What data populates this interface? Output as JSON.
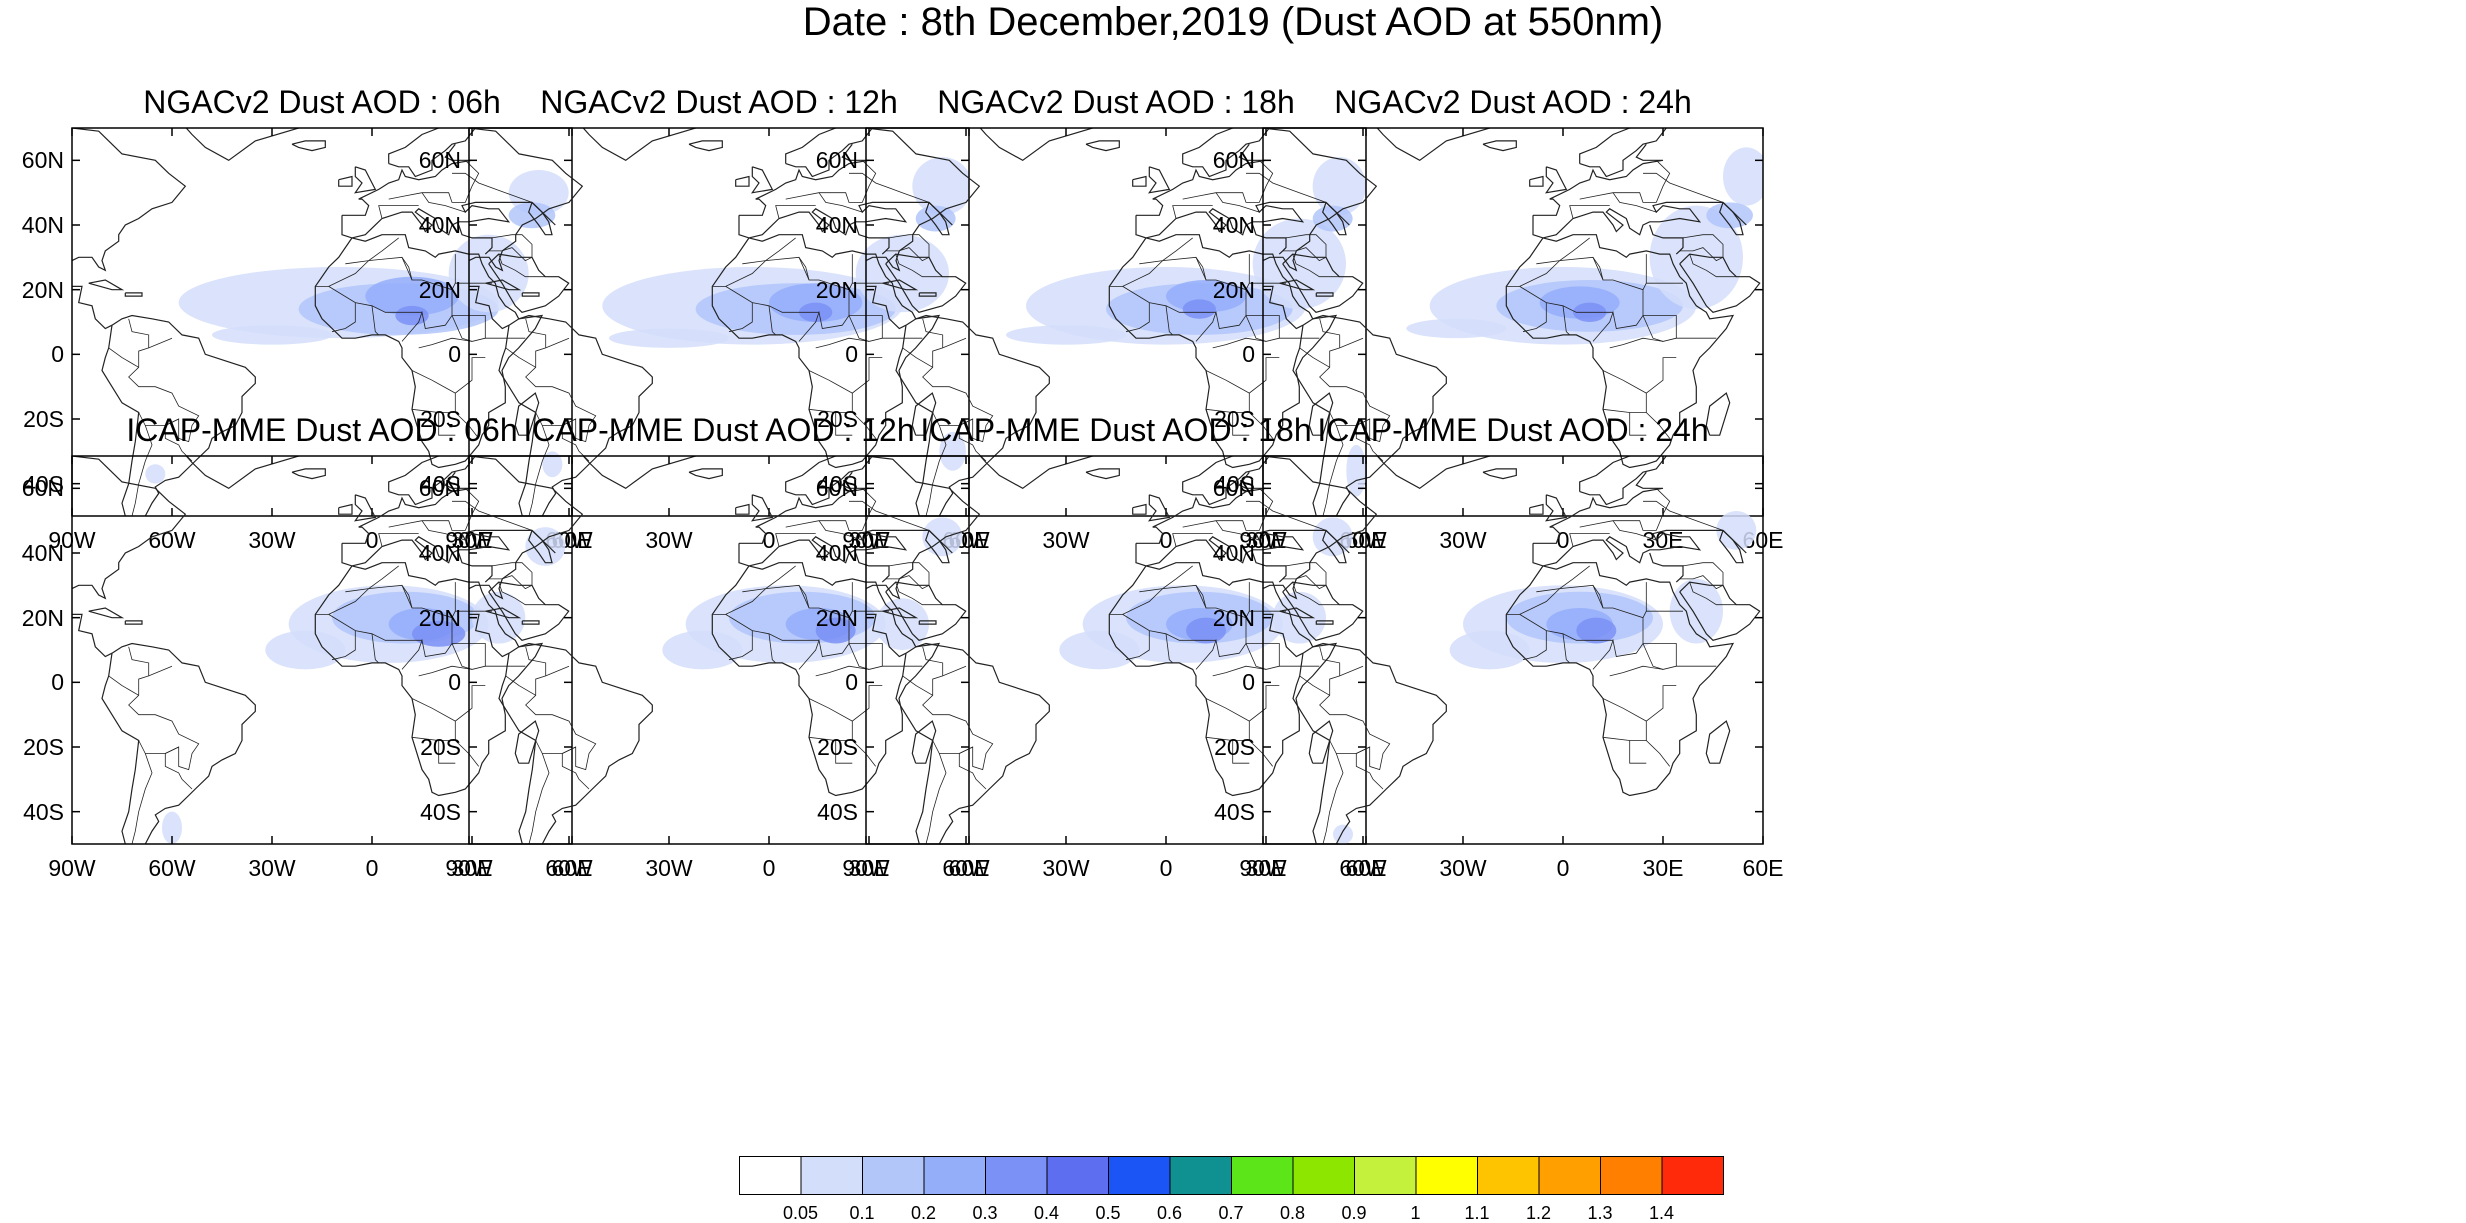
{
  "title": "Date : 8th December,2019 (Dust AOD at 550nm)",
  "panels": [
    {
      "title": "NGACv2 Dust AOD : 06h"
    },
    {
      "title": "NGACv2 Dust AOD : 12h"
    },
    {
      "title": "NGACv2 Dust AOD : 18h"
    },
    {
      "title": "NGACv2 Dust AOD : 24h"
    },
    {
      "title": "ICAP-MME Dust AOD : 06h"
    },
    {
      "title": "ICAP-MME Dust AOD : 12h"
    },
    {
      "title": "ICAP-MME Dust AOD : 18h"
    },
    {
      "title": "ICAP-MME Dust AOD : 24h"
    }
  ],
  "axes": {
    "lat_labels": [
      "60N",
      "40N",
      "20N",
      "0",
      "20S",
      "40S"
    ],
    "lon_labels": [
      "90W",
      "60W",
      "30W",
      "0",
      "30E",
      "60E"
    ],
    "lat_values": [
      60,
      40,
      20,
      0,
      -20,
      -40
    ],
    "lon_values": [
      -90,
      -60,
      -30,
      0,
      30,
      60
    ],
    "lat_range": [
      -50,
      70
    ],
    "lon_range": [
      -90,
      60
    ]
  },
  "colorbar": {
    "levels": [
      "0.05",
      "0.1",
      "0.2",
      "0.3",
      "0.4",
      "0.5",
      "0.6",
      "0.7",
      "0.8",
      "0.9",
      "1",
      "1.1",
      "1.2",
      "1.3",
      "1.4"
    ],
    "colors": [
      "#ffffff",
      "#d3defa",
      "#b2c6fa",
      "#94aefa",
      "#7b91f5",
      "#5d6ef0",
      "#1b55f5",
      "#0f9191",
      "#5ce61a",
      "#8ce600",
      "#c4f23c",
      "#ffff00",
      "#ffc400",
      "#ff9f00",
      "#ff7f00",
      "#ff2a0a"
    ]
  }
}
